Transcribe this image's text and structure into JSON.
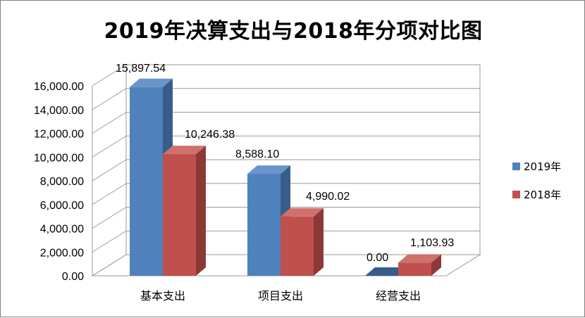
{
  "chart_data": {
    "type": "bar",
    "title": "2019年决算支出与2018年分项对比图",
    "categories": [
      "基本支出",
      "项目支出",
      "经营支出"
    ],
    "series": [
      {
        "name": "2019年",
        "values": [
          15897.54,
          8588.1,
          0.0
        ],
        "labels": [
          "15,897.54",
          "8,588.10",
          "0.00"
        ],
        "color": "#4f81bd",
        "side": "#385d8a",
        "top": "#6a95cc"
      },
      {
        "name": "2018年",
        "values": [
          10246.38,
          4990.02,
          1103.93
        ],
        "labels": [
          "10,246.38",
          "4,990.02",
          "1,103.93"
        ],
        "color": "#c0504d",
        "side": "#8c3836",
        "top": "#d0706d"
      }
    ],
    "ylim": [
      0,
      16000
    ],
    "yticks": [
      0,
      2000,
      4000,
      6000,
      8000,
      10000,
      12000,
      14000,
      16000
    ],
    "ytick_labels": [
      "0.00",
      "2,000.00",
      "4,000.00",
      "6,000.00",
      "8,000.00",
      "10,000.00",
      "12,000.00",
      "14,000.00",
      "16,000.00"
    ],
    "grid": true,
    "legend_position": "right",
    "style": "3d-clustered-column"
  }
}
